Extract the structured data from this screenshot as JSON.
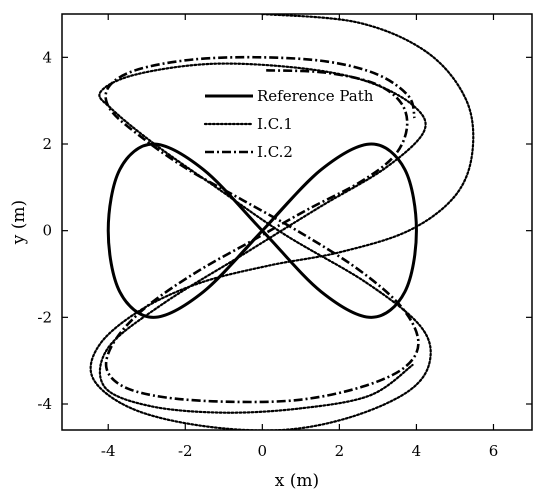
{
  "chart_data": {
    "type": "line",
    "title": "",
    "xlabel": "x (m)",
    "ylabel": "y (m)",
    "xlim": [
      -5.2,
      7.0
    ],
    "ylim": [
      -4.6,
      5.0
    ],
    "xticks": [
      -4,
      -2,
      0,
      2,
      4,
      6
    ],
    "yticks": [
      -4,
      -2,
      0,
      2,
      4
    ],
    "xtick_labels": [
      "-4",
      "-2",
      "0",
      "2",
      "4",
      "6"
    ],
    "ytick_labels": [
      "-4",
      "-2",
      "0",
      "2",
      "4"
    ],
    "grid": false,
    "legend_position": "top-center",
    "series": [
      {
        "name": "Reference Path",
        "style": "solid",
        "color": "#000000",
        "x": [
          0,
          1.53,
          2.83,
          3.7,
          4.0,
          3.7,
          2.83,
          1.53,
          0,
          -1.53,
          -2.83,
          -3.7,
          -4.0,
          -3.7,
          -2.83,
          -1.53,
          0,
          1.53,
          2.83,
          3.7,
          4.0,
          3.7,
          2.83,
          1.53,
          0,
          -1.53,
          -2.83,
          -3.7,
          -4.0,
          -3.7,
          -2.83,
          -1.53,
          0
        ],
        "y": [
          0,
          1.41,
          2.0,
          1.41,
          0,
          -1.41,
          -2.0,
          -1.41,
          0,
          1.41,
          2.0,
          1.41,
          0,
          -1.41,
          -2.0,
          -1.41,
          0,
          1.41,
          2.0,
          1.41,
          0,
          -1.41,
          -2.0,
          -1.41,
          0,
          1.41,
          2.0,
          1.41,
          0,
          -1.41,
          -2.0,
          -1.41,
          0
        ]
      },
      {
        "name": "I.C.1",
        "style": "dotted",
        "color": "#000000",
        "x": [
          0,
          2.5,
          4.3,
          5.3,
          5.45,
          5.0,
          3.8,
          2.0,
          0.2,
          -1.6,
          -3.1,
          -4.2,
          -4.4,
          -3.4,
          -1.6,
          0.5,
          2.3,
          3.8,
          4.35,
          4.1,
          2.7,
          0.6,
          -1.2,
          -2.8,
          -3.9,
          -4.2,
          -3.3,
          -1.3,
          1.0,
          2.7,
          3.9,
          4.2,
          3.2,
          1.5,
          -0.5,
          -2.6,
          -4.0,
          -4.1,
          -2.9,
          -1.0,
          1.0,
          2.8,
          3.9
        ],
        "y": [
          5.0,
          4.8,
          4.1,
          3.0,
          1.8,
          0.8,
          0.0,
          -0.5,
          -0.8,
          -1.2,
          -1.8,
          -2.6,
          -3.4,
          -4.1,
          -4.5,
          -4.6,
          -4.3,
          -3.7,
          -3.0,
          -2.2,
          -1.2,
          -0.1,
          1.0,
          2.0,
          2.8,
          3.2,
          3.6,
          3.85,
          3.75,
          3.45,
          2.9,
          2.3,
          1.45,
          0.55,
          -0.55,
          -1.7,
          -2.7,
          -3.6,
          -4.05,
          -4.2,
          -4.1,
          -3.8,
          -3.1
        ]
      },
      {
        "name": "I.C.2",
        "style": "dashdot",
        "color": "#000000",
        "x": [
          0.1,
          1.6,
          2.9,
          3.6,
          3.75,
          3.4,
          2.5,
          1.2,
          -0.2,
          -1.7,
          -3.0,
          -3.8,
          -4.05,
          -3.6,
          -2.5,
          -0.8,
          1.0,
          2.6,
          3.7,
          4.05,
          3.6,
          2.5,
          1.0,
          -0.5,
          -2.0,
          -3.2,
          -3.95,
          -4.0,
          -3.3,
          -1.8,
          0.0,
          1.7,
          3.0,
          3.8,
          3.95
        ],
        "y": [
          3.7,
          3.65,
          3.4,
          2.95,
          2.35,
          1.7,
          1.1,
          0.5,
          -0.2,
          -0.95,
          -1.75,
          -2.5,
          -3.15,
          -3.6,
          -3.85,
          -3.95,
          -3.9,
          -3.6,
          -3.15,
          -2.55,
          -1.75,
          -0.9,
          -0.05,
          0.7,
          1.45,
          2.2,
          2.8,
          3.3,
          3.7,
          3.95,
          4.0,
          3.9,
          3.6,
          3.1,
          2.6
        ]
      }
    ]
  }
}
